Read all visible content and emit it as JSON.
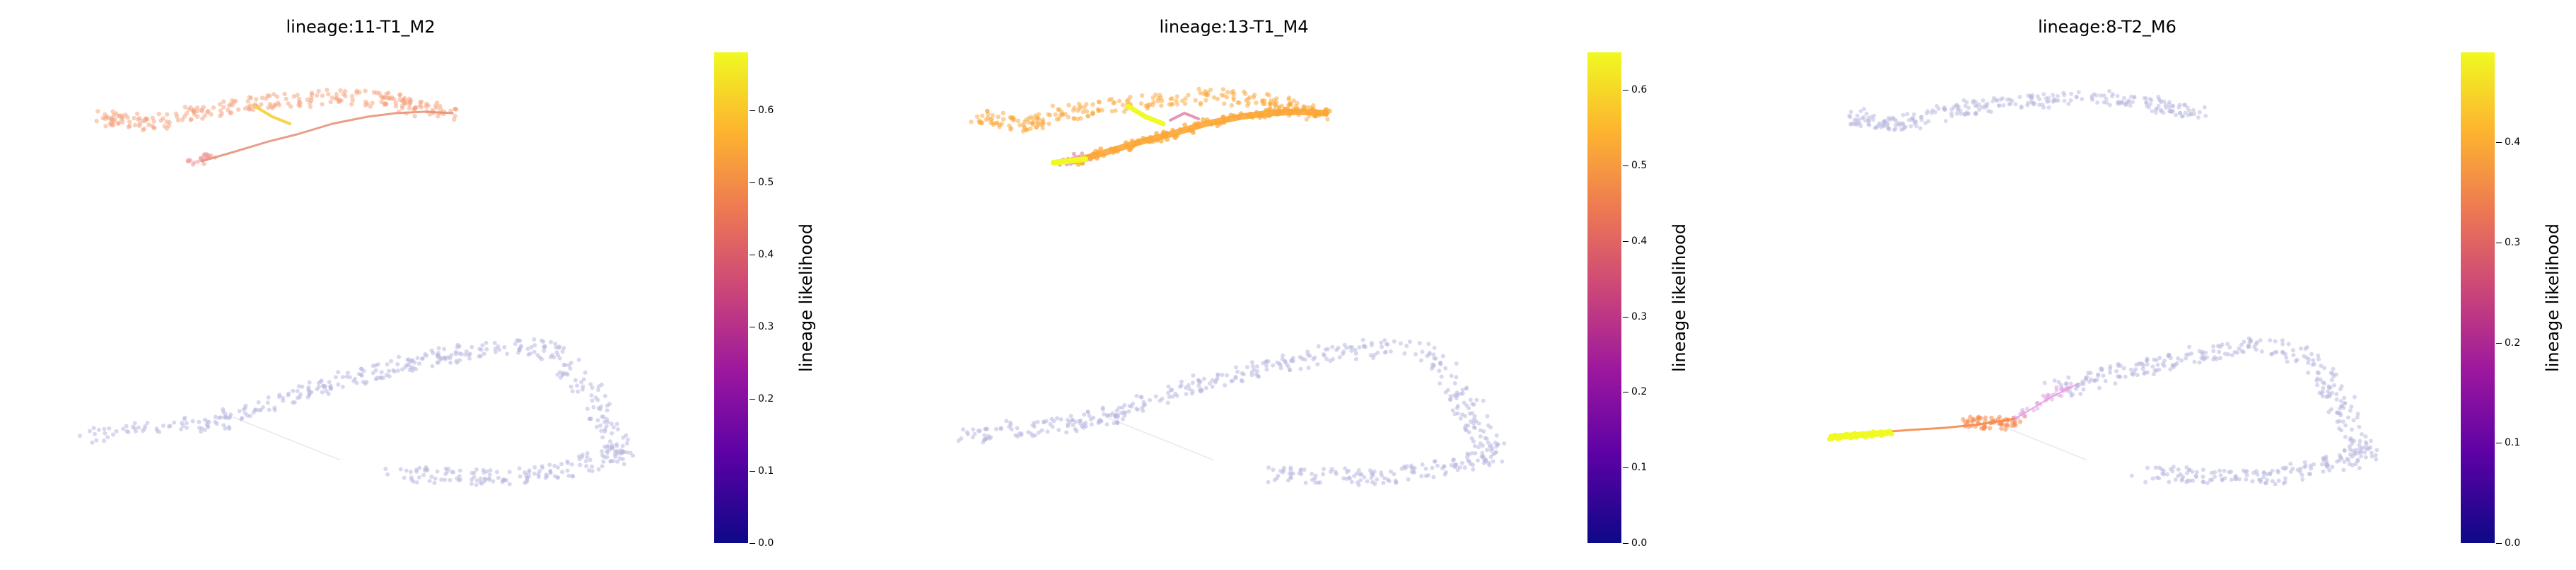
{
  "chart_data": [
    {
      "type": "scatter",
      "title": "lineage:11-T1_M2",
      "colorbar": {
        "label": "lineage likelihood",
        "colormap": "plasma",
        "range": [
          0.0,
          0.68
        ],
        "ticks": [
          "0.0",
          "0.1",
          "0.2",
          "0.3",
          "0.4",
          "0.5",
          "0.6"
        ]
      },
      "highlight_branch": "upper",
      "branch_colors": [
        "#f5a07a",
        "#f0a0a0",
        "#f7d13d"
      ],
      "trajectory_color": "#e8927a",
      "axes": "off",
      "grid": false
    },
    {
      "type": "scatter",
      "title": "lineage:13-T1_M4",
      "colorbar": {
        "label": "lineage likelihood",
        "colormap": "plasma",
        "range": [
          0.0,
          0.65
        ],
        "ticks": [
          "0.0",
          "0.1",
          "0.2",
          "0.3",
          "0.4",
          "0.5",
          "0.6"
        ]
      },
      "highlight_branch": "upper",
      "branch_colors": [
        "#fca636",
        "#e27aa0",
        "#f0f921"
      ],
      "trajectory_color": "#fca636",
      "axes": "off",
      "grid": false
    },
    {
      "type": "scatter",
      "title": "lineage:8-T2_M6",
      "colorbar": {
        "label": "lineage likelihood",
        "colormap": "plasma",
        "range": [
          0.0,
          0.49
        ],
        "ticks": [
          "0.0",
          "0.1",
          "0.2",
          "0.3",
          "0.4"
        ]
      },
      "highlight_branch": "lower-left",
      "branch_colors": [
        "#f0f921",
        "#f7894a",
        "#e0a0e0"
      ],
      "trajectory_color": "#f7894a",
      "axes": "off",
      "grid": false
    }
  ],
  "colors": {
    "background_cells": "#b8b8e0",
    "plasma_low": "#0d0887",
    "plasma_high": "#f0f921"
  }
}
